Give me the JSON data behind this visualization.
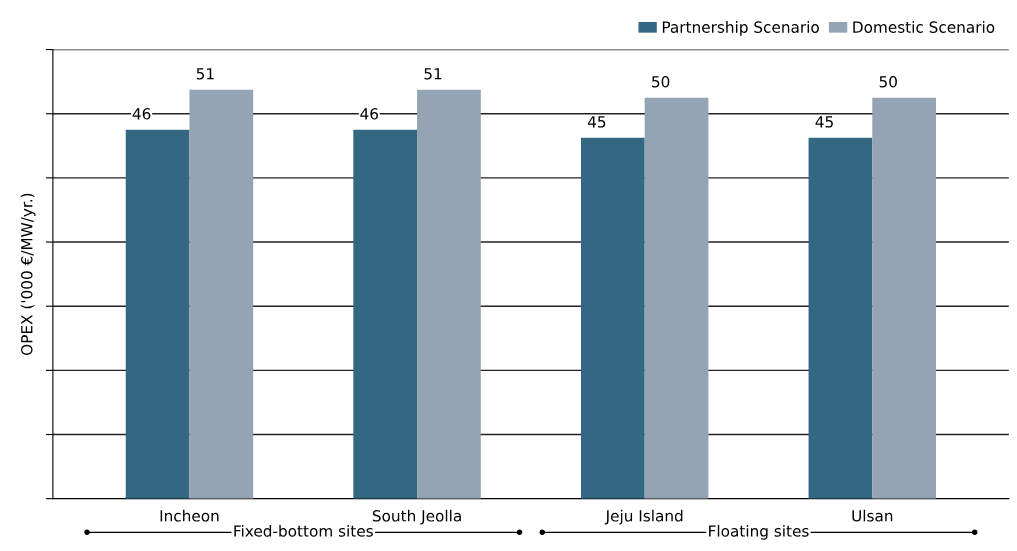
{
  "chart_data": {
    "type": "bar",
    "ylabel": "OPEX ('000 €/MW/yr.)",
    "categories": [
      "Incheon",
      "South Jeolla",
      "Jeju Island",
      "Ulsan"
    ],
    "series": [
      {
        "name": "Partnership Scenario",
        "color": "#346882",
        "values": [
          46,
          46,
          45,
          45
        ]
      },
      {
        "name": "Domestic Scenario",
        "color": "#94a4b4",
        "values": [
          51,
          51,
          50,
          50
        ]
      }
    ],
    "ylim": [
      0,
      56
    ],
    "yticks": [
      {
        "value": 0,
        "label": null
      },
      {
        "value": 8,
        "label": null
      },
      {
        "value": 16,
        "label": null
      },
      {
        "value": 24,
        "label": null
      },
      {
        "value": 32,
        "label": null
      },
      {
        "value": 40,
        "label": null
      },
      {
        "value": 48,
        "label": null
      },
      {
        "value": 56,
        "label": null
      }
    ],
    "grid": "y",
    "legend": "top right",
    "data_labels": true,
    "annotations": [
      "Fixed-bottom sites",
      "Floating sites"
    ]
  }
}
